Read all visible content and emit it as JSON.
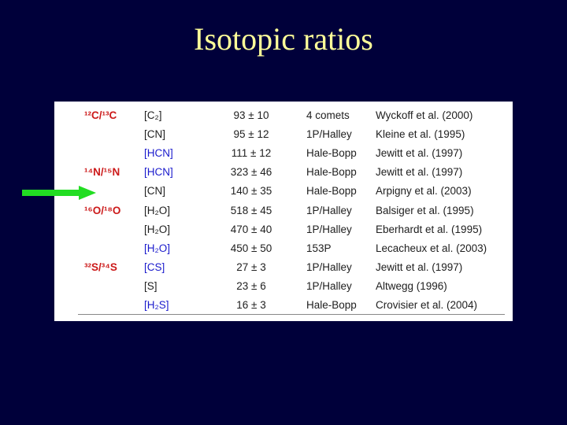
{
  "title": "Isotopic ratios",
  "table": {
    "rows": [
      {
        "isotope": "¹²C/¹³C",
        "molecule": "[C₂]",
        "molecule_color": "dark",
        "value": "93 ± 10",
        "source": "4 comets",
        "reference": "Wyckoff et al. (2000)"
      },
      {
        "isotope": "",
        "molecule": "[CN]",
        "molecule_color": "dark",
        "value": "95 ± 12",
        "source": "1P/Halley",
        "reference": "Kleine et al. (1995)"
      },
      {
        "isotope": "",
        "molecule": "[HCN]",
        "molecule_color": "blue",
        "value": "111 ± 12",
        "source": "Hale-Bopp",
        "reference": "Jewitt et al. (1997)"
      },
      {
        "isotope": "¹⁴N/¹⁵N",
        "molecule": "[HCN]",
        "molecule_color": "blue",
        "value": "323 ± 46",
        "source": "Hale-Bopp",
        "reference": "Jewitt et al. (1997)"
      },
      {
        "isotope": "",
        "molecule": "[CN]",
        "molecule_color": "dark",
        "value": "140 ± 35",
        "source": "Hale-Bopp",
        "reference": "Arpigny et al. (2003)"
      },
      {
        "isotope": "¹⁶O/¹⁸O",
        "molecule": "[H₂O]",
        "molecule_color": "dark",
        "value": "518 ± 45",
        "source": "1P/Halley",
        "reference": "Balsiger et al. (1995)"
      },
      {
        "isotope": "",
        "molecule": "[H₂O]",
        "molecule_color": "dark",
        "value": "470 ± 40",
        "source": "1P/Halley",
        "reference": "Eberhardt et al. (1995)"
      },
      {
        "isotope": "",
        "molecule": "[H₂O]",
        "molecule_color": "blue",
        "value": "450 ± 50",
        "source": "153P",
        "reference": "Lecacheux et al. (2003)"
      },
      {
        "isotope": "³²S/³⁴S",
        "molecule": "[CS]",
        "molecule_color": "blue",
        "value": "27 ± 3",
        "source": "1P/Halley",
        "reference": "Jewitt et al. (1997)"
      },
      {
        "isotope": "",
        "molecule": "[S]",
        "molecule_color": "dark",
        "value": "23 ± 6",
        "source": "1P/Halley",
        "reference": "Altwegg (1996)"
      },
      {
        "isotope": "",
        "molecule": "[H₂S]",
        "molecule_color": "blue",
        "value": "16 ± 3",
        "source": "Hale-Bopp",
        "reference": "Crovisier et al. (2004)"
      }
    ]
  },
  "colors": {
    "background": "#00003a",
    "title": "#ffff99",
    "isotope": "#cc1a1a",
    "blue_molecule": "#1a1acc",
    "arrow": "#22dd22"
  },
  "arrow": {
    "icon": "right-arrow-icon",
    "points_to_row": 4
  }
}
